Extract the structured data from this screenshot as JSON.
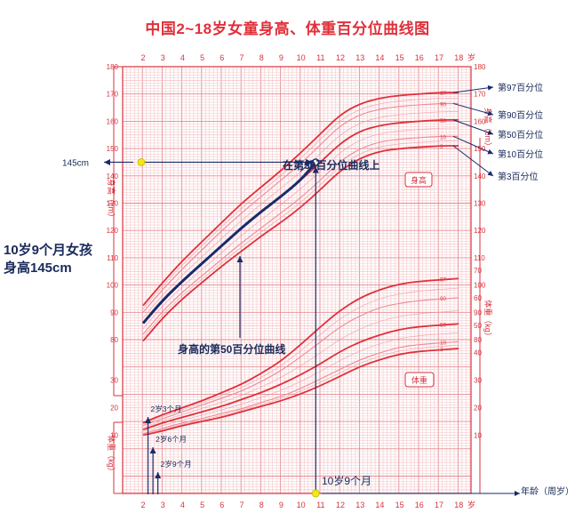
{
  "title": "中国2~18岁女童身高、体重百分位曲线图",
  "colors": {
    "grid_minor": "#f2c0c4",
    "grid_major": "#e58a92",
    "axis": "#d8323c",
    "curve_main": "#e0303a",
    "curve_light": "#ef8a95",
    "highlight": "#1a2a6a",
    "marker": "#f5e61a",
    "annot": "#1a2a5a"
  },
  "annotations": {
    "main_note_line1": "10岁9个月女孩",
    "main_note_line2": "身高145cm",
    "y_value_label": "145cm",
    "on_curve_note": "在第50百分位曲线上",
    "p50_curve_note": "身高的第50百分位曲线",
    "age_label": "10岁9个月",
    "age_2_3": "2岁3个月",
    "age_2_6": "2岁6个月",
    "age_2_9": "2岁9个月",
    "height_box": "身高",
    "weight_box": "体重",
    "x_axis_title": "年龄（周岁）"
  },
  "chart_data": {
    "type": "line",
    "title": "中国2~18岁女童身高、体重百分位曲线图",
    "x_label": "岁",
    "xlim": [
      2,
      18
    ],
    "x_ticks": [
      "2",
      "3",
      "4",
      "5",
      "6",
      "7",
      "8",
      "9",
      "10",
      "11",
      "12",
      "13",
      "14",
      "15",
      "16",
      "17",
      "18"
    ],
    "height_axis": {
      "label": "身高（cm）",
      "ylim": [
        80,
        180
      ],
      "ticks": [
        "180",
        "170",
        "160",
        "150",
        "140",
        "130",
        "120",
        "110",
        "100",
        "90",
        "80"
      ]
    },
    "weight_axis": {
      "label": "体重（kg）",
      "ticks": [
        "70",
        "60",
        "50",
        "40",
        "30",
        "20",
        "10"
      ]
    },
    "x": [
      2,
      3,
      4,
      5,
      6,
      7,
      8,
      9,
      10,
      11,
      12,
      13,
      14,
      15,
      16,
      17,
      18
    ],
    "height_series": [
      {
        "name": "第97百分位",
        "end_label": "97",
        "values": [
          92.5,
          101,
          109,
          116,
          123,
          130,
          136,
          142,
          148.5,
          155.5,
          162.5,
          166.5,
          168.5,
          169.5,
          170,
          170.5,
          170.5
        ]
      },
      {
        "name": "第90百分位",
        "end_label": "90",
        "values": [
          90,
          98.5,
          106,
          113,
          120,
          126.5,
          132.5,
          138.5,
          144.5,
          151.5,
          158.5,
          162.5,
          164.5,
          165.5,
          166,
          166.5,
          166.5
        ]
      },
      {
        "name": "第50百分位",
        "end_label": "50",
        "values": [
          86,
          94.5,
          101.5,
          108,
          114.5,
          121,
          127,
          132.5,
          138.5,
          145,
          152,
          156.5,
          158.5,
          159.5,
          160,
          160.5,
          160.5
        ]
      },
      {
        "name": "第10百分位",
        "end_label": "10",
        "values": [
          82,
          90.5,
          97.5,
          103.5,
          109.5,
          115.5,
          121,
          126.5,
          132,
          138.5,
          145.5,
          150,
          152.5,
          153.5,
          154,
          154.5,
          154.5
        ]
      },
      {
        "name": "第3百分位",
        "end_label": "3",
        "values": [
          79.5,
          88,
          95,
          101,
          107,
          112.5,
          118,
          123,
          128.5,
          135,
          142,
          146.5,
          149,
          150,
          150.5,
          151,
          151
        ]
      }
    ],
    "weight_series": [
      {
        "end_label": "97",
        "values": [
          14.5,
          17.5,
          20,
          22.5,
          25.5,
          28.5,
          32.5,
          37,
          43,
          49.5,
          55.5,
          60,
          63,
          65,
          66,
          66.5,
          67
        ]
      },
      {
        "end_label": "90",
        "values": [
          13.5,
          16,
          18.5,
          21,
          23.5,
          26,
          29.5,
          33.5,
          38.5,
          44,
          49.5,
          53.5,
          56.5,
          58,
          59,
          59.5,
          60
        ]
      },
      {
        "end_label": "50",
        "values": [
          12,
          14.5,
          16.5,
          18.5,
          20.5,
          23,
          25.5,
          28.5,
          32,
          36,
          40.5,
          44,
          46.5,
          48.5,
          49.5,
          50,
          50.5
        ]
      },
      {
        "end_label": "10",
        "values": [
          10.5,
          12.5,
          14.5,
          16,
          18,
          19.5,
          22,
          24,
          27,
          30.5,
          34,
          37.5,
          40,
          42,
          43,
          43.5,
          44
        ]
      },
      {
        "end_label": "3",
        "values": [
          10,
          11.5,
          13.5,
          15,
          16.5,
          18.5,
          20.5,
          22.5,
          25,
          28,
          31.5,
          35,
          37.5,
          39.5,
          40.5,
          41,
          41.5
        ]
      }
    ],
    "percentile_labels": [
      "第97百分位",
      "第90百分位",
      "第50百分位",
      "第10百分位",
      "第3百分位"
    ],
    "highlighted": {
      "name": "身高的第50百分位曲线",
      "x": [
        2,
        3,
        4,
        5,
        6,
        7,
        8,
        9,
        10,
        10.75
      ],
      "values": [
        86,
        94.5,
        101.5,
        108,
        114.5,
        121,
        127,
        132.5,
        138.5,
        145
      ]
    },
    "point": {
      "x": 10.75,
      "y": 145
    },
    "age_arrows": [
      2.25,
      2.5,
      2.75
    ]
  }
}
